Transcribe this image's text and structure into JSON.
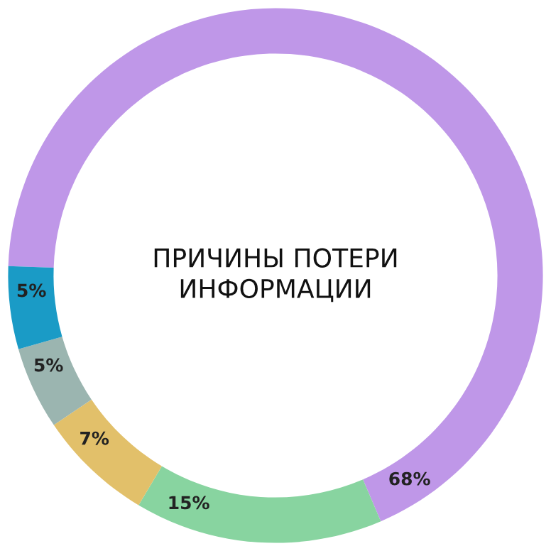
{
  "chart_data": {
    "type": "donut",
    "title": "ПРИЧИНЫ ПОТЕРИ\nИНФОРМАЦИИ",
    "categories": [
      null,
      null,
      null,
      null,
      null
    ],
    "values": [
      68,
      15,
      7,
      5,
      5
    ],
    "colors": [
      "#bf97e8",
      "#88d4a0",
      "#e2c06a",
      "#9bb5b0",
      "#1a9bc6"
    ],
    "value_labels": [
      "68%",
      "15%",
      "7%",
      "5%",
      "5%"
    ]
  }
}
